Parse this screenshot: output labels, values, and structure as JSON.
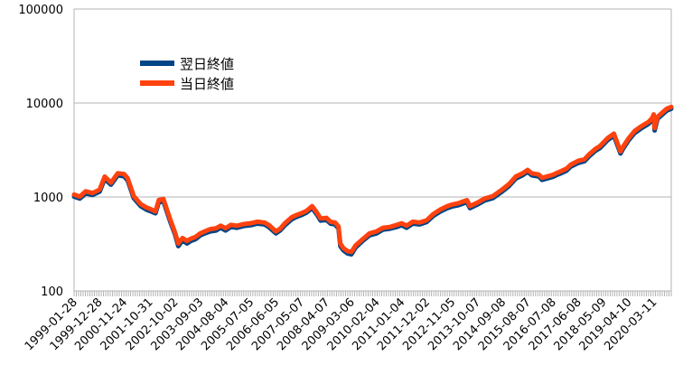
{
  "chart_data": {
    "type": "line",
    "y_scale": "log",
    "ylim": [
      100,
      100000
    ],
    "y_ticks": [
      "100",
      "1000",
      "10000",
      "100000"
    ],
    "y_tick_values": [
      100,
      1000,
      10000,
      100000
    ],
    "x_tick_labels": [
      "1999-01-28",
      "1999-12-28",
      "2000-11-24",
      "2001-10-31",
      "2002-10-02",
      "2003-09-03",
      "2004-08-04",
      "2005-07-05",
      "2006-06-05",
      "2007-05-07",
      "2008-04-07",
      "2009-03-06",
      "2010-02-04",
      "2011-01-04",
      "2011-12-02",
      "2012-11-05",
      "2013-10-07",
      "2014-09-08",
      "2015-08-07",
      "2016-07-08",
      "2017-06-08",
      "2018-05-09",
      "2019-04-10",
      "2020-03-11"
    ],
    "xlim": [
      "1999-01-28",
      "2020-10-30"
    ],
    "grid": "horizontal",
    "legend_position": "upper-left",
    "series": [
      {
        "name": "翌日終値",
        "color": "#004586",
        "x": [
          "1999-01-28",
          "1999-04-15",
          "1999-07-01",
          "1999-10-01",
          "2000-01-03",
          "2000-03-10",
          "2000-06-01",
          "2000-09-01",
          "2000-11-24",
          "2001-01-10",
          "2001-04-02",
          "2001-07-02",
          "2001-09-21",
          "2001-10-31",
          "2002-01-15",
          "2002-03-01",
          "2002-05-01",
          "2002-08-01",
          "2002-10-02",
          "2002-11-15",
          "2003-01-10",
          "2003-03-10",
          "2003-05-01",
          "2003-07-01",
          "2003-09-03",
          "2003-11-01",
          "2004-01-15",
          "2004-04-01",
          "2004-06-01",
          "2004-08-04",
          "2004-10-15",
          "2005-01-04",
          "2005-04-01",
          "2005-07-05",
          "2005-10-01",
          "2006-01-04",
          "2006-03-01",
          "2006-06-05",
          "2006-08-01",
          "2006-10-02",
          "2007-01-04",
          "2007-03-01",
          "2007-05-07",
          "2007-07-16",
          "2007-10-01",
          "2007-12-03",
          "2008-01-22",
          "2008-04-07",
          "2008-06-02",
          "2008-08-01",
          "2008-09-15",
          "2008-10-10",
          "2008-11-20",
          "2009-01-15",
          "2009-03-06",
          "2009-05-01",
          "2009-08-03",
          "2009-11-02",
          "2010-02-04",
          "2010-05-01",
          "2010-08-02",
          "2010-11-01",
          "2011-01-04",
          "2011-03-11",
          "2011-06-01",
          "2011-09-01",
          "2011-12-02",
          "2012-03-01",
          "2012-06-01",
          "2012-09-03",
          "2012-11-05",
          "2013-02-01",
          "2013-05-22",
          "2013-07-01",
          "2013-10-07",
          "2014-01-15",
          "2014-05-01",
          "2014-09-08",
          "2014-12-01",
          "2015-03-02",
          "2015-06-01",
          "2015-08-07",
          "2015-10-01",
          "2016-01-04",
          "2016-02-15",
          "2016-05-02",
          "2016-07-08",
          "2016-09-01",
          "2016-11-01",
          "2017-01-04",
          "2017-03-01",
          "2017-06-08",
          "2017-09-01",
          "2017-11-01",
          "2018-01-26",
          "2018-03-23",
          "2018-05-09",
          "2018-07-02",
          "2018-09-28",
          "2018-12-24",
          "2019-02-01",
          "2019-04-10",
          "2019-07-01",
          "2019-10-01",
          "2020-01-02",
          "2020-02-19",
          "2020-03-11",
          "2020-03-23",
          "2020-05-01",
          "2020-07-01",
          "2020-09-01",
          "2020-10-30"
        ],
        "values": [
          1010,
          960,
          1090,
          1050,
          1140,
          1560,
          1350,
          1700,
          1660,
          1500,
          970,
          800,
          730,
          710,
          670,
          880,
          900,
          540,
          400,
          300,
          345,
          320,
          340,
          355,
          390,
          410,
          430,
          440,
          470,
          440,
          480,
          470,
          490,
          500,
          520,
          510,
          480,
          410,
          440,
          500,
          580,
          610,
          640,
          680,
          760,
          650,
          560,
          570,
          520,
          510,
          460,
          300,
          270,
          250,
          245,
          290,
          340,
          390,
          410,
          450,
          460,
          480,
          500,
          470,
          520,
          510,
          540,
          630,
          700,
          760,
          790,
          820,
          880,
          760,
          830,
          920,
          970,
          1150,
          1300,
          1570,
          1700,
          1850,
          1700,
          1650,
          1520,
          1580,
          1640,
          1720,
          1800,
          1900,
          2100,
          2300,
          2400,
          2700,
          3100,
          3300,
          3600,
          4000,
          4500,
          2900,
          3300,
          4000,
          4800,
          5400,
          6000,
          6600,
          7200,
          5100,
          6800,
          7500,
          8300,
          8700
        ]
      },
      {
        "name": "当日終値",
        "color": "#ff420e",
        "x": [
          "1999-01-28",
          "1999-04-15",
          "1999-07-01",
          "1999-10-01",
          "2000-01-03",
          "2000-03-10",
          "2000-06-01",
          "2000-09-01",
          "2000-11-24",
          "2001-01-10",
          "2001-04-02",
          "2001-07-02",
          "2001-09-21",
          "2001-10-31",
          "2002-01-15",
          "2002-03-01",
          "2002-05-01",
          "2002-08-01",
          "2002-10-02",
          "2002-11-15",
          "2003-01-10",
          "2003-03-10",
          "2003-05-01",
          "2003-07-01",
          "2003-09-03",
          "2003-11-01",
          "2004-01-15",
          "2004-04-01",
          "2004-06-01",
          "2004-08-04",
          "2004-10-15",
          "2005-01-04",
          "2005-04-01",
          "2005-07-05",
          "2005-10-01",
          "2006-01-04",
          "2006-03-01",
          "2006-06-05",
          "2006-08-01",
          "2006-10-02",
          "2007-01-04",
          "2007-03-01",
          "2007-05-07",
          "2007-07-16",
          "2007-10-01",
          "2007-12-03",
          "2008-01-22",
          "2008-04-07",
          "2008-06-02",
          "2008-08-01",
          "2008-09-15",
          "2008-10-10",
          "2008-11-20",
          "2009-01-15",
          "2009-03-06",
          "2009-05-01",
          "2009-08-03",
          "2009-11-02",
          "2010-02-04",
          "2010-05-01",
          "2010-08-02",
          "2010-11-01",
          "2011-01-04",
          "2011-03-11",
          "2011-06-01",
          "2011-09-01",
          "2011-12-02",
          "2012-03-01",
          "2012-06-01",
          "2012-09-03",
          "2012-11-05",
          "2013-02-01",
          "2013-05-22",
          "2013-07-01",
          "2013-10-07",
          "2014-01-15",
          "2014-05-01",
          "2014-09-08",
          "2014-12-01",
          "2015-03-02",
          "2015-06-01",
          "2015-08-07",
          "2015-10-01",
          "2016-01-04",
          "2016-02-15",
          "2016-05-02",
          "2016-07-08",
          "2016-09-01",
          "2016-11-01",
          "2017-01-04",
          "2017-03-01",
          "2017-06-08",
          "2017-09-01",
          "2017-11-01",
          "2018-01-26",
          "2018-03-23",
          "2018-05-09",
          "2018-07-02",
          "2018-09-28",
          "2018-12-24",
          "2019-02-01",
          "2019-04-10",
          "2019-07-01",
          "2019-10-01",
          "2020-01-02",
          "2020-02-19",
          "2020-03-11",
          "2020-03-23",
          "2020-05-01",
          "2020-07-01",
          "2020-09-01",
          "2020-10-30"
        ],
        "values": [
          1060,
          1010,
          1150,
          1100,
          1200,
          1650,
          1420,
          1790,
          1750,
          1580,
          1020,
          840,
          770,
          750,
          700,
          930,
          950,
          570,
          420,
          320,
          365,
          340,
          360,
          375,
          410,
          430,
          455,
          465,
          495,
          465,
          505,
          495,
          515,
          525,
          545,
          535,
          505,
          430,
          460,
          525,
          610,
          640,
          670,
          710,
          800,
          680,
          590,
          600,
          545,
          535,
          485,
          320,
          285,
          265,
          260,
          305,
          355,
          410,
          430,
          470,
          480,
          505,
          525,
          495,
          545,
          535,
          565,
          660,
          735,
          800,
          830,
          860,
          925,
          800,
          870,
          965,
          1020,
          1210,
          1365,
          1650,
          1785,
          1940,
          1785,
          1730,
          1600,
          1660,
          1720,
          1805,
          1890,
          2000,
          2200,
          2420,
          2520,
          2840,
          3250,
          3460,
          3780,
          4200,
          4720,
          3050,
          3460,
          4200,
          5040,
          5670,
          6300,
          6930,
          7560,
          5400,
          7140,
          7880,
          8700,
          9100
        ]
      }
    ]
  }
}
